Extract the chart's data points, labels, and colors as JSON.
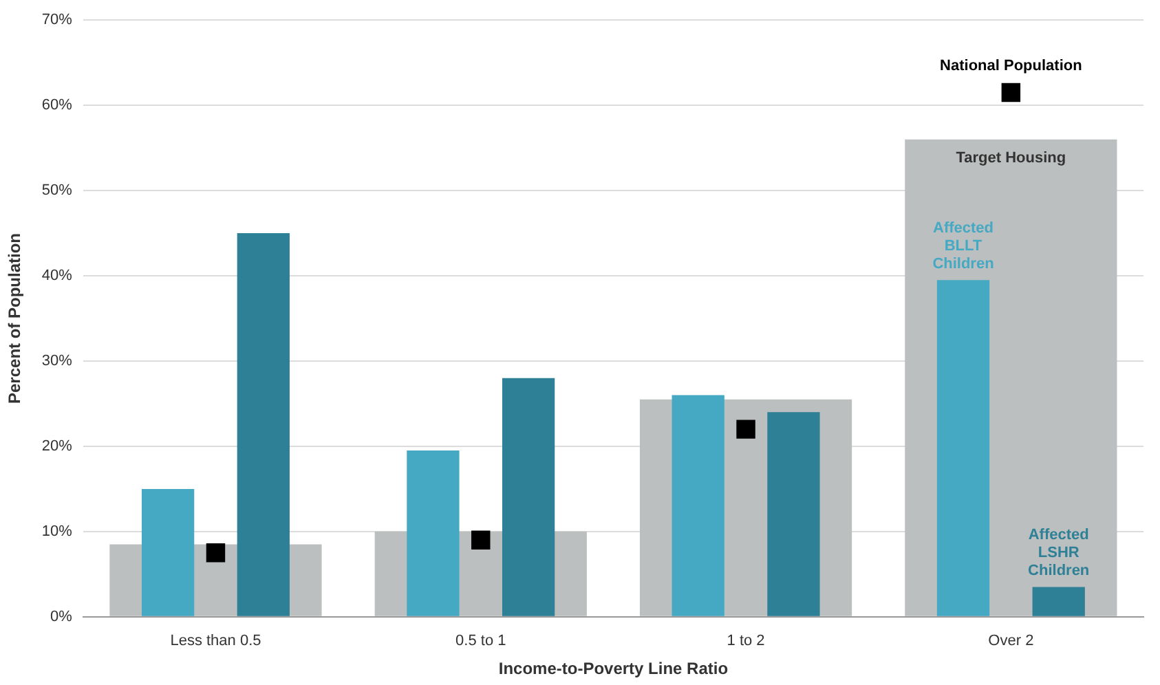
{
  "chart_data": {
    "type": "bar",
    "xlabel": "Income-to-Poverty Line Ratio",
    "ylabel": "Percent of Population",
    "categories": [
      "Less than 0.5",
      "0.5 to 1",
      "1 to 2",
      "Over 2"
    ],
    "series": [
      {
        "name": "Target Housing",
        "color": "#bcbfbf",
        "values": [
          8.5,
          10,
          25.5,
          56
        ]
      },
      {
        "name": "Affected BLLT Children",
        "color": "#45a9c4",
        "values": [
          15,
          19.5,
          26,
          39.5
        ]
      },
      {
        "name": "Affected LSHR Children",
        "color": "#2e8097",
        "values": [
          45,
          28,
          24,
          3.5
        ]
      },
      {
        "name": "National Population",
        "type": "scatter",
        "marker": "square",
        "color": "#000000",
        "values": [
          7.5,
          9,
          22,
          61.5
        ]
      }
    ],
    "ylim": [
      0,
      70
    ],
    "yticks": [
      {
        "value": 0,
        "label": "0%"
      },
      {
        "value": 10,
        "label": "10%"
      },
      {
        "value": 20,
        "label": "20%"
      },
      {
        "value": 30,
        "label": "30%"
      },
      {
        "value": 40,
        "label": "40%"
      },
      {
        "value": 50,
        "label": "50%"
      },
      {
        "value": 60,
        "label": "60%"
      },
      {
        "value": 70,
        "label": "70%"
      }
    ],
    "grid": "y",
    "legend": false
  }
}
